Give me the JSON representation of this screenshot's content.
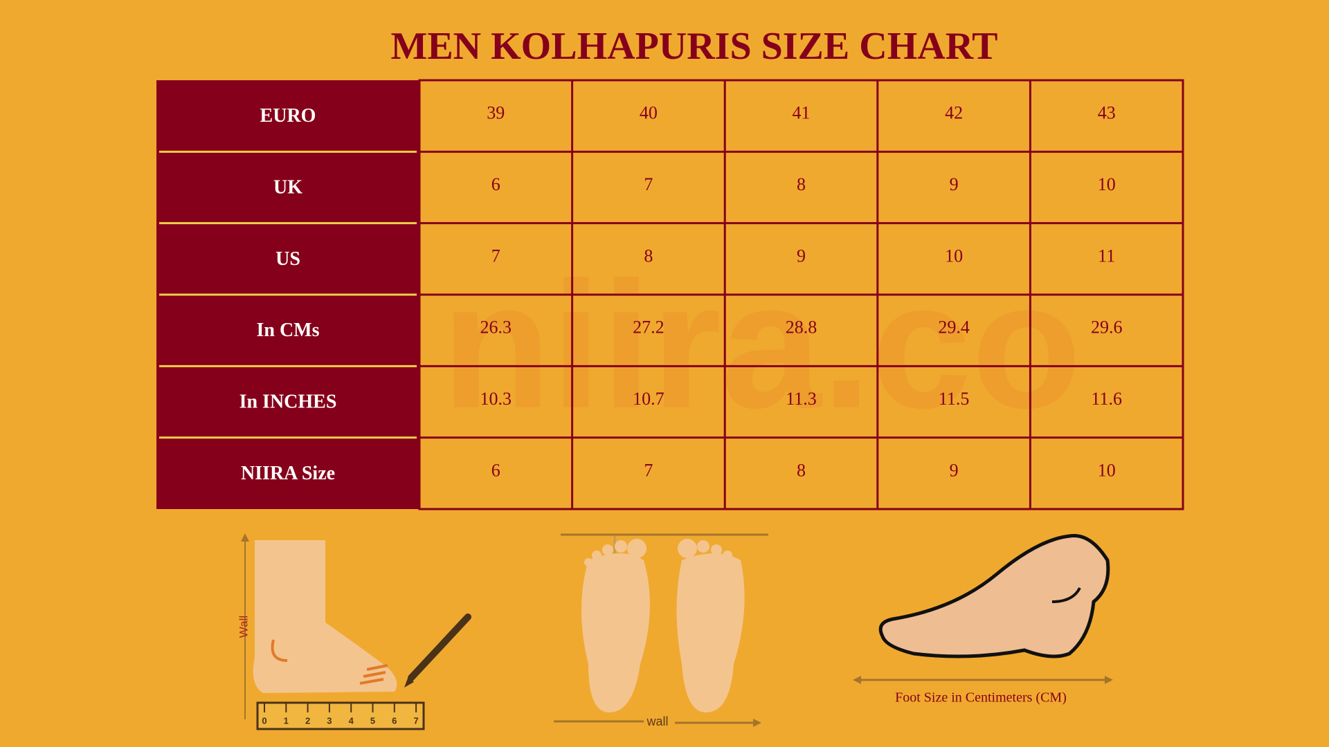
{
  "title": "MEN KOLHAPURIS SIZE CHART",
  "watermark": "niira.co",
  "table": {
    "rows": [
      {
        "label": "EURO",
        "values": [
          39,
          40,
          41,
          42,
          43
        ]
      },
      {
        "label": "UK",
        "values": [
          6,
          7,
          8,
          9,
          10
        ]
      },
      {
        "label": "US",
        "values": [
          7,
          8,
          9,
          10,
          11
        ]
      },
      {
        "label": "In CMs",
        "values": [
          26.3,
          27.2,
          28.8,
          29.4,
          29.6
        ]
      },
      {
        "label": "In INCHES",
        "values": [
          10.3,
          10.7,
          11.3,
          11.5,
          11.6
        ]
      },
      {
        "label": "NIIRA Size",
        "values": [
          6,
          7,
          8,
          9,
          10
        ]
      }
    ]
  },
  "illustrations": {
    "wall_side": "Wall",
    "ruler": [
      0,
      1,
      2,
      3,
      4,
      5,
      6,
      7
    ],
    "wall_bottom": "wall",
    "foot_size": "Foot Size in Centimeters (CM)"
  }
}
